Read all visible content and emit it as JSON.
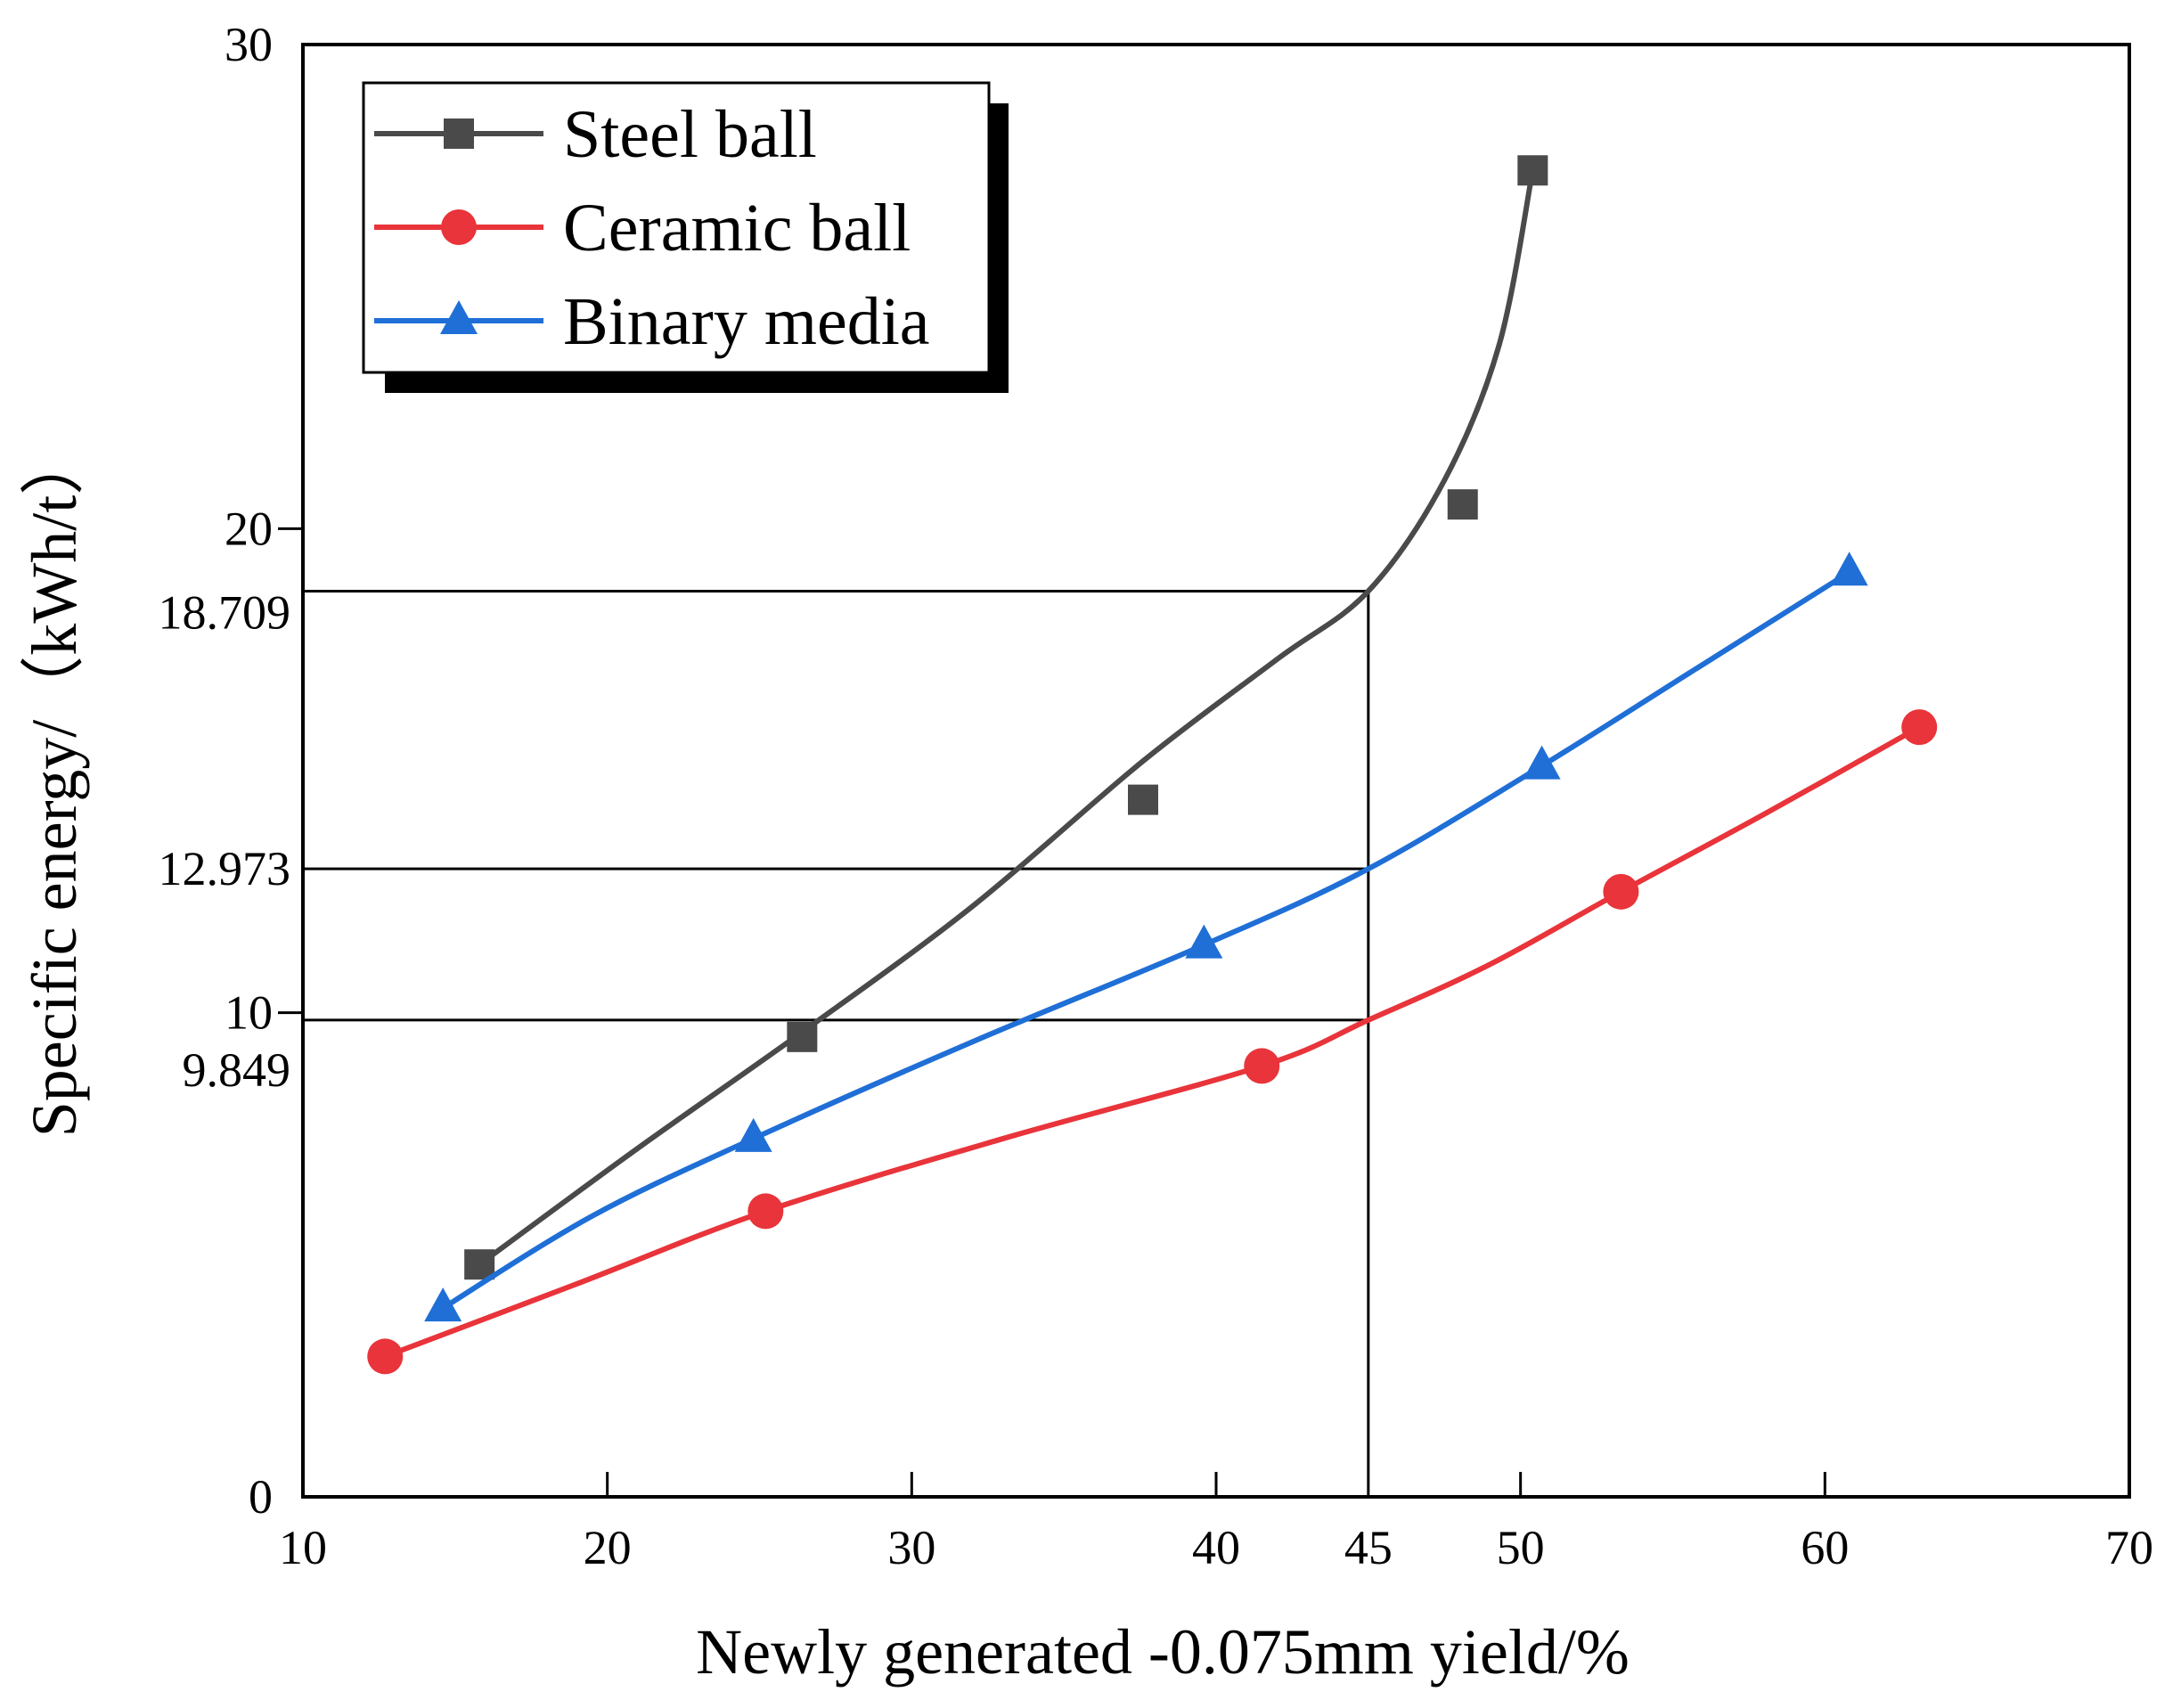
{
  "chart_data": {
    "type": "line",
    "title": "",
    "xlabel": "Newly generated -0.075mm yield/%",
    "ylabel": "Specific energy/（kWh/t）",
    "xlim": [
      10,
      70
    ],
    "ylim": [
      0,
      30
    ],
    "x_ticks": [
      "10",
      "20",
      "30",
      "40",
      "45",
      "50",
      "60",
      "70"
    ],
    "x_tick_values": [
      10,
      20,
      30,
      40,
      45,
      50,
      60,
      70
    ],
    "y_ticks": [
      "0",
      "10",
      "20",
      "30"
    ],
    "y_tick_values": [
      0,
      10,
      20,
      30
    ],
    "legend_position": "top-left",
    "grid": false,
    "reference_lines": {
      "x": 45,
      "x_label": "45",
      "y_values": [
        18.709,
        12.973,
        9.849
      ],
      "y_labels": [
        "18.709",
        "12.973",
        "9.849"
      ]
    },
    "series": [
      {
        "name": "Steel ball",
        "color": "#4a4a4a",
        "marker": "square",
        "points": [
          [
            15.8,
            4.8
          ],
          [
            26.4,
            9.5
          ],
          [
            37.6,
            14.4
          ],
          [
            48.1,
            20.5
          ],
          [
            50.4,
            27.4
          ]
        ],
        "curve": [
          [
            15.8,
            4.8
          ],
          [
            21,
            7.2
          ],
          [
            26.4,
            9.6
          ],
          [
            32,
            12.2
          ],
          [
            37.6,
            15.2
          ],
          [
            42,
            17.3
          ],
          [
            45,
            18.709
          ],
          [
            47.5,
            21.0
          ],
          [
            49.3,
            23.8
          ],
          [
            50.4,
            27.4
          ]
        ]
      },
      {
        "name": "Ceramic ball",
        "color": "#e8343a",
        "marker": "circle",
        "points": [
          [
            12.7,
            2.9
          ],
          [
            25.2,
            5.9
          ],
          [
            41.5,
            8.9
          ],
          [
            53.3,
            12.5
          ],
          [
            63.1,
            15.9
          ]
        ],
        "curve": [
          [
            12.7,
            2.9
          ],
          [
            19,
            4.4
          ],
          [
            25.2,
            5.9
          ],
          [
            33,
            7.4
          ],
          [
            41.5,
            8.9
          ],
          [
            45,
            9.849
          ],
          [
            49,
            11.0
          ],
          [
            53.3,
            12.5
          ],
          [
            58,
            14.1
          ],
          [
            63.1,
            15.9
          ]
        ]
      },
      {
        "name": "Binary media",
        "color": "#1f6fd6",
        "marker": "triangle",
        "points": [
          [
            14.6,
            3.9
          ],
          [
            24.8,
            7.4
          ],
          [
            39.6,
            11.4
          ],
          [
            50.7,
            15.1
          ],
          [
            60.8,
            19.1
          ]
        ],
        "curve": [
          [
            14.6,
            3.9
          ],
          [
            19.5,
            5.8
          ],
          [
            24.8,
            7.4
          ],
          [
            32,
            9.4
          ],
          [
            39.6,
            11.4
          ],
          [
            45,
            12.973
          ],
          [
            50.7,
            15.1
          ],
          [
            55.5,
            17.0
          ],
          [
            60.8,
            19.1
          ]
        ]
      }
    ]
  }
}
